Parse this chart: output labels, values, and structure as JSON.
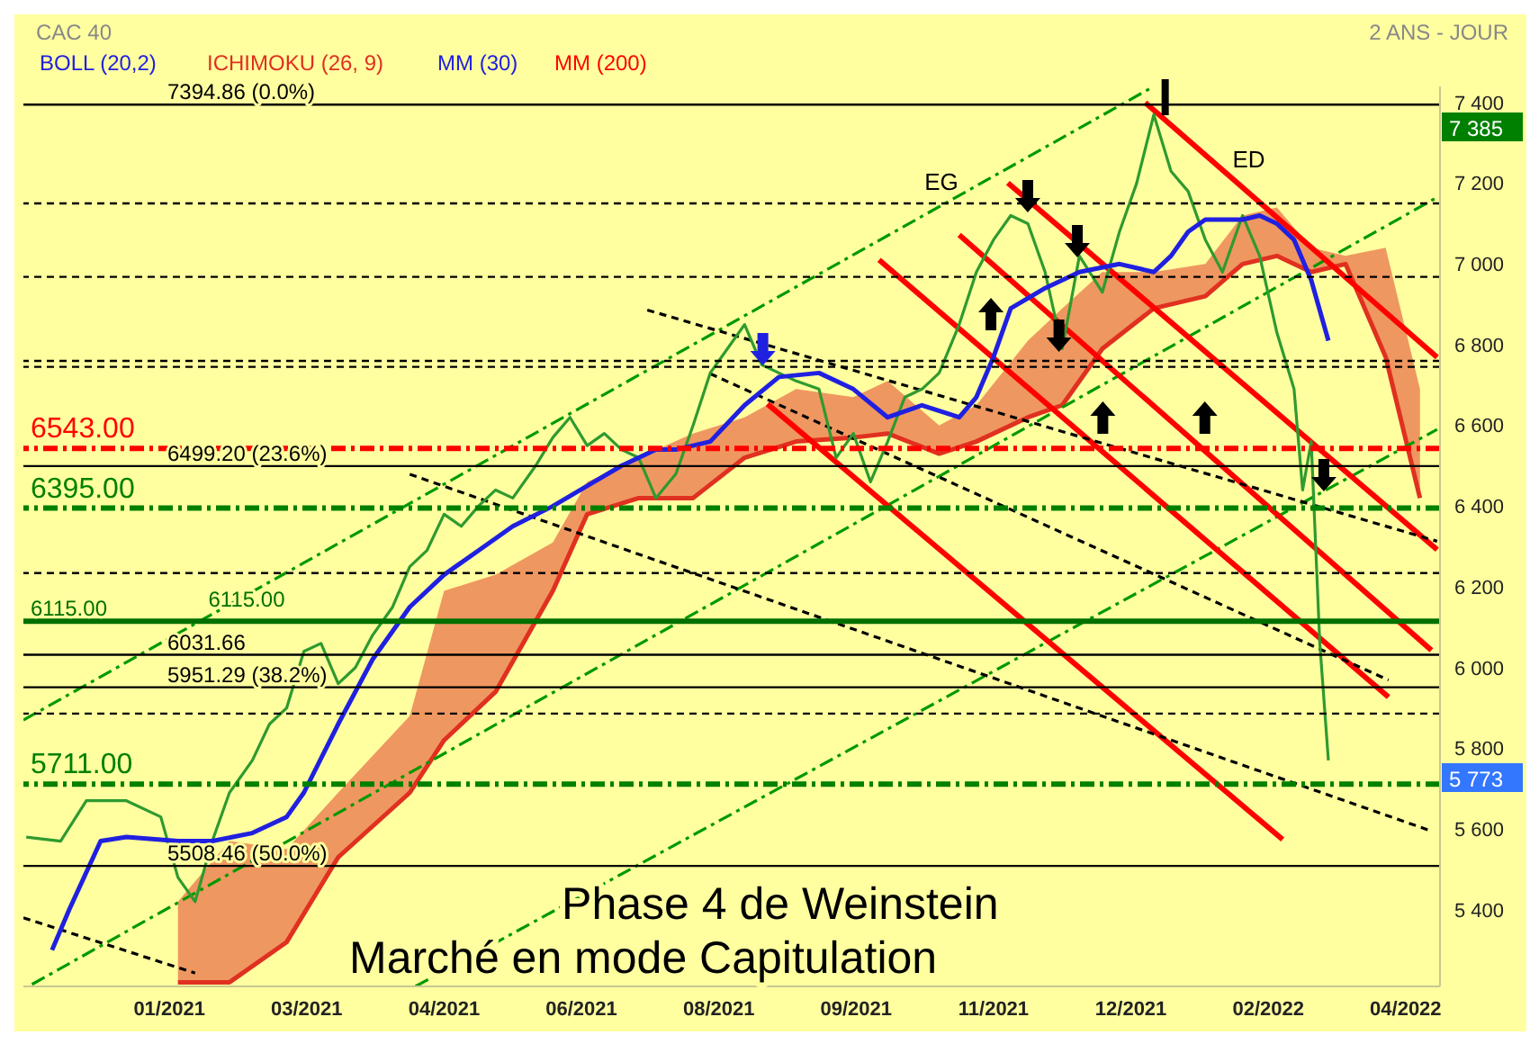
{
  "chart_data": {
    "type": "line",
    "title": "CAC 40",
    "subtitle": "2 ANS - JOUR",
    "xlim": [
      "2020-11-14",
      "2022-03-24"
    ],
    "xticks": [
      {
        "value": "2021-01-04",
        "label": "01/2021"
      },
      {
        "value": "2021-02-21",
        "label": "03/2021"
      },
      {
        "value": "2021-04-10",
        "label": "04/2021"
      },
      {
        "value": "2021-05-28",
        "label": "06/2021"
      },
      {
        "value": "2021-07-15",
        "label": "08/2021"
      },
      {
        "value": "2021-09-01",
        "label": "09/2021"
      },
      {
        "value": "2021-10-19",
        "label": "11/2021"
      },
      {
        "value": "2021-12-06",
        "label": "12/2021"
      },
      {
        "value": "2022-01-23",
        "label": "02/2022"
      },
      {
        "value": "2022-03-12",
        "label": "04/2022"
      }
    ],
    "ylim": [
      5210,
      7440
    ],
    "yticks": [
      {
        "value": 5400,
        "label": "5 400"
      },
      {
        "value": 5600,
        "label": "5 600"
      },
      {
        "value": 5800,
        "label": "5 800"
      },
      {
        "value": 6000,
        "label": "6 000"
      },
      {
        "value": 6200,
        "label": "6 200"
      },
      {
        "value": 6400,
        "label": "6 400"
      },
      {
        "value": 6600,
        "label": "6 600"
      },
      {
        "value": 6800,
        "label": "6 800"
      },
      {
        "value": 7000,
        "label": "7 000"
      },
      {
        "value": 7200,
        "label": "7 200"
      },
      {
        "value": 7400,
        "label": "7 400"
      }
    ],
    "legend": "top left",
    "series": [
      {
        "type": "line",
        "name": "ICHIMOKU (26, 9)",
        "color": "#e03020",
        "upper": [
          5420,
          5570,
          5550,
          5690,
          5880,
          6190,
          6230,
          6310,
          6460,
          6520,
          6580,
          6620,
          6690,
          6670,
          6710,
          6600,
          6650,
          6810,
          6890,
          6980,
          6980,
          7000,
          7120,
          7140,
          7040,
          7020,
          7040,
          6690
        ],
        "lower": [
          5220,
          5220,
          5320,
          5530,
          5690,
          5820,
          5940,
          6190,
          6380,
          6420,
          6420,
          6520,
          6560,
          6570,
          6580,
          6530,
          6560,
          6620,
          6650,
          6790,
          6890,
          6920,
          7000,
          7020,
          6980,
          7000,
          6770,
          6420
        ],
        "x": [
          "2021-01-07",
          "2021-01-25",
          "2021-02-14",
          "2021-03-04",
          "2021-03-29",
          "2021-04-10",
          "2021-04-28",
          "2021-05-18",
          "2021-05-30",
          "2021-06-17",
          "2021-07-06",
          "2021-07-24",
          "2021-08-11",
          "2021-08-31",
          "2021-09-12",
          "2021-09-30",
          "2021-10-13",
          "2021-10-31",
          "2021-11-12",
          "2021-11-26",
          "2021-12-14",
          "2022-01-01",
          "2022-01-14",
          "2022-01-26",
          "2022-02-07",
          "2022-02-19",
          "2022-03-05",
          "2022-03-17"
        ],
        "values": [
          5220,
          5220,
          5320,
          5530,
          5690,
          5820,
          5940,
          6190,
          6380,
          6420,
          6420,
          6520,
          6560,
          6570,
          6580,
          6530,
          6560,
          6620,
          6650,
          6790,
          6890,
          6920,
          7000,
          7020,
          6980,
          7000,
          6770,
          6420
        ]
      },
      {
        "type": "line",
        "color": "#009900",
        "line_style": "dashed",
        "x": [
          "2020-11-14",
          "2021-12-14"
        ],
        "values": [
          5870,
          7440
        ]
      },
      {
        "type": "line",
        "color": "#009900",
        "line_style": "dashed",
        "x": [
          "2020-11-17",
          "2022-03-23"
        ],
        "values": [
          5215,
          7165
        ]
      },
      {
        "type": "line",
        "color": "#009900",
        "line_style": "dashed",
        "x": [
          "2021-03-31",
          "2022-03-23"
        ],
        "values": [
          5210,
          6590
        ]
      },
      {
        "type": "line",
        "color": "#ff0000",
        "x": [
          "2021-08-01",
          "2022-01-28"
        ],
        "values": [
          6653,
          5574
        ]
      },
      {
        "type": "line",
        "color": "#ff0000",
        "x": [
          "2021-09-09",
          "2022-03-06"
        ],
        "values": [
          7010,
          5927
        ]
      },
      {
        "type": "line",
        "color": "#ff0000",
        "x": [
          "2021-10-07",
          "2022-03-21"
        ],
        "values": [
          7072,
          6043
        ]
      },
      {
        "type": "line",
        "color": "#ff0000",
        "x": [
          "2021-10-24",
          "2022-03-23"
        ],
        "values": [
          7201,
          6292
        ]
      },
      {
        "type": "line",
        "color": "#ff0000",
        "x": [
          "2021-12-11",
          "2022-03-23"
        ],
        "values": [
          7400,
          6769
        ]
      },
      {
        "type": "line",
        "color": "#000000",
        "line_style": "dotted",
        "x": [
          "2021-06-20",
          "2022-03-23"
        ],
        "values": [
          6886,
          6313
        ]
      },
      {
        "type": "line",
        "color": "#000000",
        "line_style": "dotted",
        "x": [
          "2021-03-29",
          "2022-03-21"
        ],
        "values": [
          6479,
          5595
        ]
      },
      {
        "type": "line",
        "color": "#000000",
        "line_style": "dotted",
        "x": [
          "2021-07-12",
          "2022-03-06"
        ],
        "values": [
          6728,
          5969
        ]
      },
      {
        "type": "line",
        "color": "#000000",
        "line_style": "dotted",
        "x": [
          "2020-11-14",
          "2021-01-13"
        ],
        "values": [
          5380,
          5243
        ]
      },
      {
        "color": "#2f9a2f",
        "x": [
          "2020-11-15",
          "2020-11-27",
          "2020-12-06",
          "2020-12-20",
          "2021-01-01",
          "2021-01-07",
          "2021-01-13",
          "2021-01-19",
          "2021-01-25",
          "2021-02-02",
          "2021-02-08",
          "2021-02-14",
          "2021-02-20",
          "2021-02-26",
          "2021-03-04",
          "2021-03-10",
          "2021-03-16",
          "2021-03-23",
          "2021-03-29",
          "2021-04-04",
          "2021-04-10",
          "2021-04-16",
          "2021-04-22",
          "2021-04-28",
          "2021-05-04",
          "2021-05-12",
          "2021-05-18",
          "2021-05-24",
          "2021-05-30",
          "2021-06-05",
          "2021-06-11",
          "2021-06-17",
          "2021-06-23",
          "2021-06-30",
          "2021-07-06",
          "2021-07-12",
          "2021-07-18",
          "2021-07-24",
          "2021-07-30",
          "2021-08-05",
          "2021-08-11",
          "2021-08-19",
          "2021-08-25",
          "2021-08-31",
          "2021-09-06",
          "2021-09-12",
          "2021-09-18",
          "2021-09-24",
          "2021-09-30",
          "2021-10-07",
          "2021-10-13",
          "2021-10-19",
          "2021-10-25",
          "2021-10-31",
          "2021-11-06",
          "2021-11-12",
          "2021-11-18",
          "2021-11-26",
          "2021-12-02",
          "2021-12-08",
          "2021-12-14",
          "2021-12-20",
          "2021-12-26",
          "2022-01-01",
          "2022-01-07",
          "2022-01-14",
          "2022-01-20",
          "2022-01-26",
          "2022-02-01",
          "2022-02-04",
          "2022-02-07",
          "2022-02-10",
          "2022-02-13"
        ],
        "values": [
          5580,
          5570,
          5670,
          5670,
          5630,
          5480,
          5420,
          5570,
          5690,
          5770,
          5860,
          5900,
          6040,
          6060,
          5960,
          6000,
          6080,
          6150,
          6250,
          6290,
          6380,
          6350,
          6400,
          6440,
          6420,
          6500,
          6570,
          6620,
          6550,
          6580,
          6540,
          6520,
          6420,
          6480,
          6600,
          6730,
          6790,
          6850,
          6750,
          6730,
          6710,
          6690,
          6520,
          6580,
          6460,
          6560,
          6670,
          6690,
          6730,
          6850,
          6980,
          7060,
          7120,
          7100,
          6980,
          6790,
          7020,
          6930,
          7080,
          7200,
          7370,
          7230,
          7180,
          7060,
          6980,
          7120,
          7020,
          6830,
          6690,
          6440,
          6560,
          6060,
          5770
        ]
      },
      {
        "name": "MM (30)",
        "color": "#2020e0",
        "x": [
          "2020-11-24",
          "2020-11-30",
          "2020-12-11",
          "2020-12-20",
          "2021-01-07",
          "2021-01-19",
          "2021-02-02",
          "2021-02-14",
          "2021-02-20",
          "2021-03-04",
          "2021-03-16",
          "2021-03-29",
          "2021-04-10",
          "2021-04-22",
          "2021-05-04",
          "2021-05-18",
          "2021-05-30",
          "2021-06-11",
          "2021-06-23",
          "2021-06-30",
          "2021-07-12",
          "2021-07-24",
          "2021-08-05",
          "2021-08-19",
          "2021-08-31",
          "2021-09-12",
          "2021-09-24",
          "2021-10-07",
          "2021-10-13",
          "2021-10-19",
          "2021-10-25",
          "2021-11-06",
          "2021-11-18",
          "2021-12-02",
          "2021-12-14",
          "2021-12-20",
          "2021-12-26",
          "2022-01-01",
          "2022-01-14",
          "2022-01-20",
          "2022-01-26",
          "2022-02-01",
          "2022-02-07",
          "2022-02-13"
        ],
        "values": [
          5300,
          5400,
          5570,
          5580,
          5570,
          5570,
          5590,
          5630,
          5690,
          5860,
          6020,
          6150,
          6230,
          6290,
          6350,
          6400,
          6450,
          6500,
          6540,
          6540,
          6560,
          6650,
          6720,
          6730,
          6690,
          6620,
          6650,
          6620,
          6670,
          6770,
          6890,
          6940,
          6980,
          7000,
          6980,
          7020,
          7080,
          7110,
          7110,
          7120,
          7100,
          7060,
          6960,
          6810
        ]
      }
    ],
    "ref_lines": [
      {
        "axis": "y",
        "value": 7394.86,
        "label": "7394.86 (0.0%)",
        "color": "#000000"
      },
      {
        "axis": "y",
        "value": 7150,
        "color": "#000000",
        "line_style": "dotted"
      },
      {
        "axis": "y",
        "value": 6968,
        "color": "#000000",
        "line_style": "dotted"
      },
      {
        "axis": "y",
        "value": 6760,
        "color": "#000000",
        "line_style": "dotted"
      },
      {
        "axis": "y",
        "value": 6745,
        "color": "#000000",
        "line_style": "dotted"
      },
      {
        "axis": "y",
        "value": 6543,
        "label": "6543.00",
        "color": "#ff0000",
        "line_style": "dashed"
      },
      {
        "axis": "y",
        "value": 6499.2,
        "label": "6499.20 (23.6%)",
        "color": "#000000"
      },
      {
        "axis": "y",
        "value": 6395,
        "label": "6395.00",
        "color": "#008000",
        "line_style": "dashed"
      },
      {
        "axis": "y",
        "value": 6234,
        "color": "#000000",
        "line_style": "dotted"
      },
      {
        "axis": "y",
        "value": 6115,
        "label": "6115.00",
        "color": "#007000"
      },
      {
        "axis": "y",
        "value": 6031.66,
        "label": "6031.66",
        "color": "#000000"
      },
      {
        "axis": "y",
        "value": 5951.29,
        "label": "5951.29 (38.2%)",
        "color": "#000000"
      },
      {
        "axis": "y",
        "value": 5886,
        "color": "#000000",
        "line_style": "dotted"
      },
      {
        "axis": "y",
        "value": 5711,
        "label": "5711.00",
        "color": "#008000",
        "line_style": "dashed"
      },
      {
        "axis": "y",
        "value": 5508.46,
        "label": "5508.46 (50.0%)",
        "color": "#000000"
      }
    ],
    "annotations": [
      "BOLL (20,2)",
      "MM (200)",
      "Phase 4 de Weinstein",
      "Marché en mode Capitulation",
      "EG",
      "ED",
      "7 385",
      "5 773",
      {
        "text": "6115.00",
        "x": "2021-01-31",
        "y": 6115
      }
    ]
  }
}
